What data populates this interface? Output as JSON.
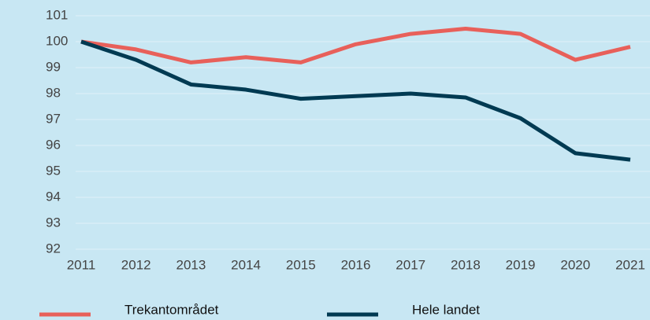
{
  "chart_data": {
    "type": "line",
    "categories": [
      "2011",
      "2012",
      "2013",
      "2014",
      "2015",
      "2016",
      "2017",
      "2018",
      "2019",
      "2020",
      "2021"
    ],
    "series": [
      {
        "name": "Trekantområdet",
        "color": "#e8605a",
        "values": [
          100,
          99.7,
          99.2,
          99.4,
          99.2,
          99.9,
          100.3,
          100.5,
          100.3,
          99.3,
          99.8
        ]
      },
      {
        "name": "Hele landet",
        "color": "#003a52",
        "values": [
          100,
          99.3,
          98.35,
          98.15,
          97.8,
          97.9,
          98.0,
          97.85,
          97.05,
          95.7,
          95.45
        ]
      }
    ],
    "ylim": [
      92,
      101
    ],
    "yticks": [
      92,
      93,
      94,
      95,
      96,
      97,
      98,
      99,
      100,
      101
    ],
    "grid": true,
    "legend": "bottom"
  }
}
